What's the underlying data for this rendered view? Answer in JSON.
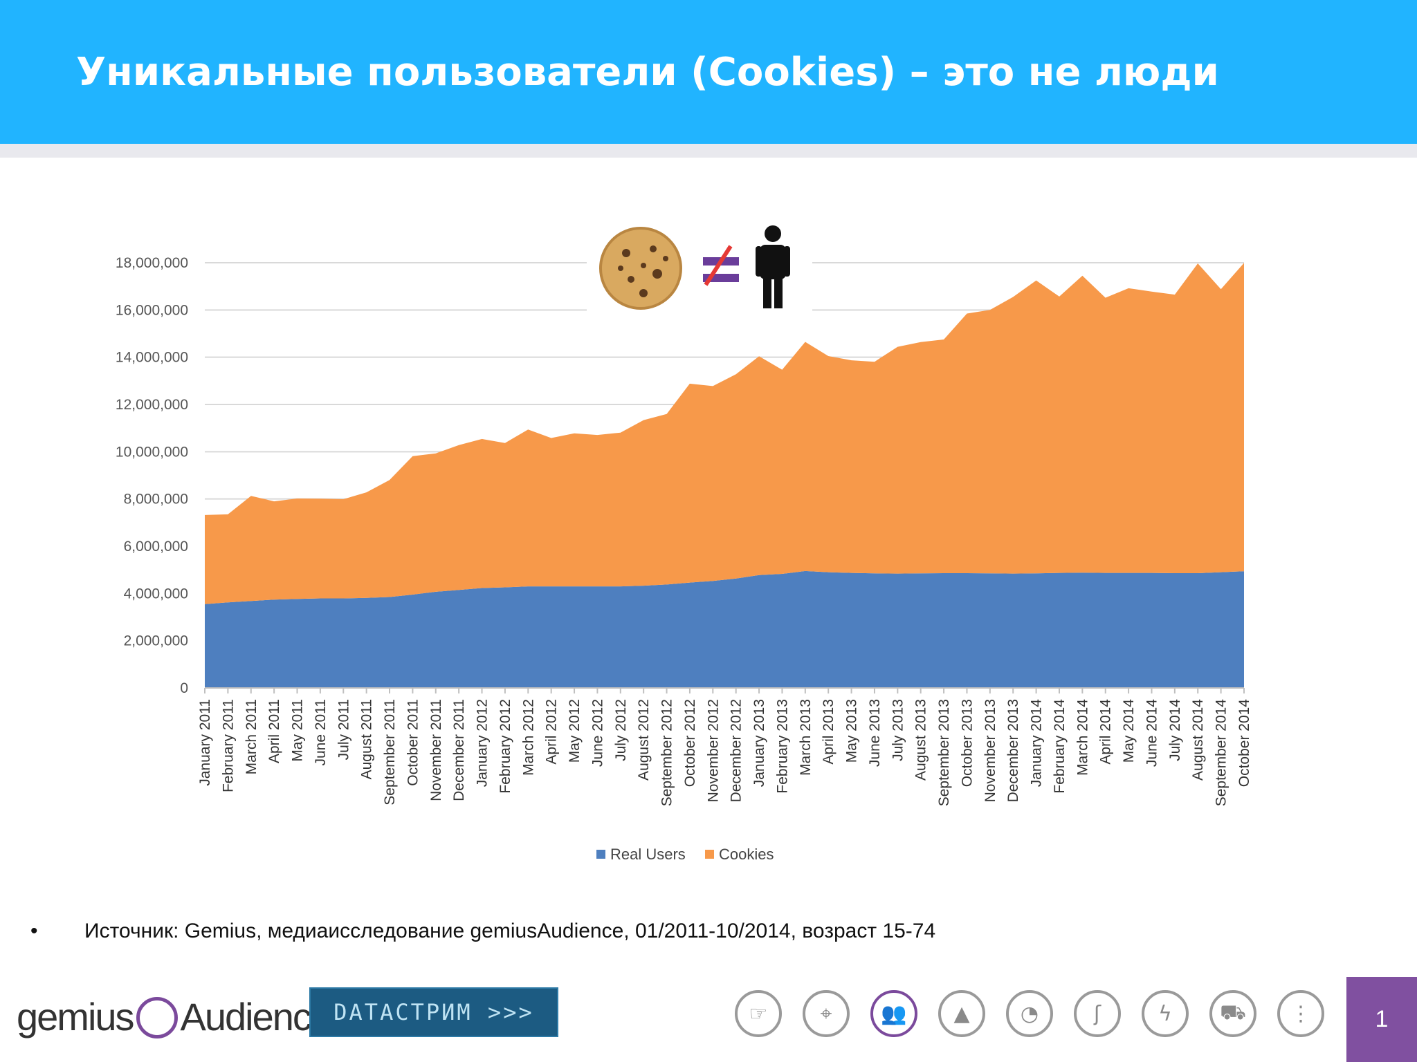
{
  "title": "Уникальные пользователи (Cookies) – это не люди",
  "bullet": {
    "marker": "•",
    "text": "Источник: Gemius, медиаисследование gemiusAudience,  01/2011-10/2014, возраст 15-74"
  },
  "logos": {
    "gemius_left": "gemius",
    "gemius_right": "Audience",
    "datastream": "DATACTPИM >>>"
  },
  "footer_icons": [
    "hand-icon",
    "location-pin-icon",
    "people-icon",
    "mountain-icon",
    "wifi-signal-icon",
    "sword-icon",
    "lightning-icon",
    "cart-icon",
    "traffic-light-icon"
  ],
  "page_number": "1",
  "colors": {
    "header": "#21b4ff",
    "real_users": "#4e7fbf",
    "cookies": "#f7994a",
    "accent": "#8050a0"
  },
  "chart_data": {
    "type": "area",
    "stacked": true,
    "ylim": [
      0,
      18000000
    ],
    "yticks": [
      0,
      2000000,
      4000000,
      6000000,
      8000000,
      10000000,
      12000000,
      14000000,
      16000000,
      18000000
    ],
    "ytick_labels": [
      "0",
      "2,000,000",
      "4,000,000",
      "6,000,000",
      "8,000,000",
      "10,000,000",
      "12,000,000",
      "14,000,000",
      "16,000,000",
      "18,000,000"
    ],
    "grid": true,
    "legend": "bottom",
    "categories": [
      "January 2011",
      "February 2011",
      "March 2011",
      "April 2011",
      "May 2011",
      "June 2011",
      "July 2011",
      "August 2011",
      "September 2011",
      "October 2011",
      "November 2011",
      "December 2011",
      "January 2012",
      "February 2012",
      "March 2012",
      "April 2012",
      "May 2012",
      "June 2012",
      "July 2012",
      "August 2012",
      "September 2012",
      "October 2012",
      "November 2012",
      "December 2012",
      "January 2013",
      "February 2013",
      "March 2013",
      "April 2013",
      "May 2013",
      "June 2013",
      "July 2013",
      "August 2013",
      "September 2013",
      "October 2013",
      "November 2013",
      "December 2013",
      "January 2014",
      "February 2014",
      "March 2014",
      "April 2014",
      "May 2014",
      "June 2014",
      "July 2014",
      "August 2014",
      "September 2014",
      "October 2014"
    ],
    "series": [
      {
        "name": "Real Users",
        "color": "#4e7fbf",
        "values": [
          3550000,
          3620000,
          3680000,
          3740000,
          3770000,
          3790000,
          3790000,
          3810000,
          3850000,
          3950000,
          4070000,
          4150000,
          4230000,
          4260000,
          4300000,
          4300000,
          4300000,
          4300000,
          4300000,
          4330000,
          4380000,
          4460000,
          4530000,
          4630000,
          4780000,
          4830000,
          4950000,
          4900000,
          4870000,
          4850000,
          4840000,
          4850000,
          4860000,
          4860000,
          4850000,
          4840000,
          4850000,
          4870000,
          4880000,
          4870000,
          4870000,
          4870000,
          4860000,
          4860000,
          4900000,
          4940000
        ]
      },
      {
        "name": "Cookies",
        "color": "#f7994a",
        "values": [
          3770000,
          3730000,
          4450000,
          4160000,
          4250000,
          4220000,
          4200000,
          4470000,
          4950000,
          5860000,
          5860000,
          6130000,
          6310000,
          6110000,
          6640000,
          6280000,
          6480000,
          6410000,
          6510000,
          7010000,
          7220000,
          8420000,
          8250000,
          8650000,
          9260000,
          8640000,
          9700000,
          9150000,
          9000000,
          8960000,
          9600000,
          9790000,
          9890000,
          10990000,
          11150000,
          11710000,
          12400000,
          11700000,
          12570000,
          11650000,
          12050000,
          11910000,
          11790000,
          13110000,
          11980000,
          13050000
        ]
      }
    ]
  }
}
